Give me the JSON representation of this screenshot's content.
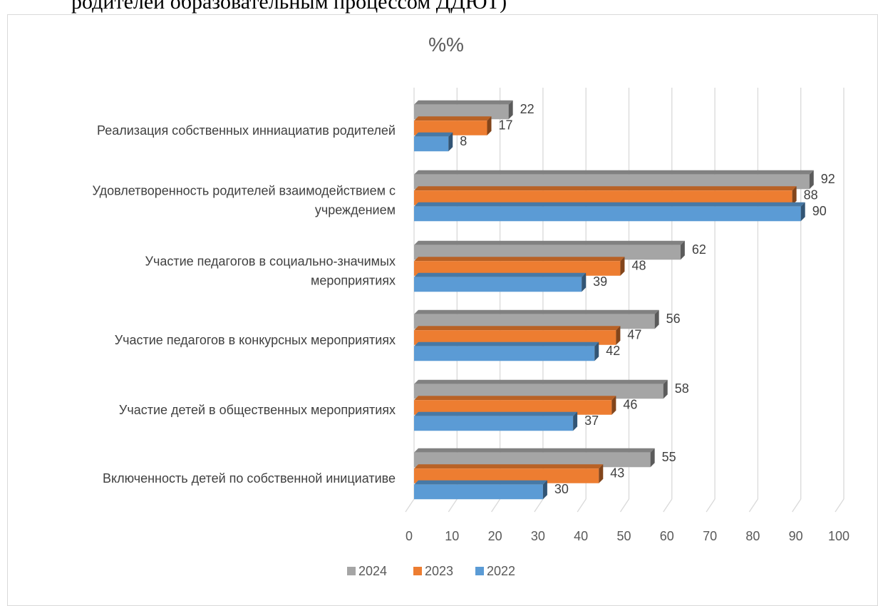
{
  "document": {
    "heading": "родителей образовательным процессом ДДЮТ)"
  },
  "chart_data": {
    "type": "bar",
    "orientation": "horizontal",
    "style": "3d-clustered",
    "title": "%%",
    "categories": [
      "Реализация собственных инициатив родителей",
      "Удовлетворенность родителей взаимодействием с учреждением",
      "Участие педагогов в социально-значимых мероприятиях",
      "Участие педагогов в конкурсных мероприятиях",
      "Участие детей в общественных мероприятиях",
      "Включенность детей по собственной инициативе"
    ],
    "category_label_lines": [
      [
        "Реализация собственных инниациатив родителей"
      ],
      [
        "Удовлетворенность родителей взаимодействием с",
        "учреждением"
      ],
      [
        "Участие педагогов в социально-значимых",
        "мероприятиях"
      ],
      [
        "Участие педагогов в конкурсных мероприятиях"
      ],
      [
        "Участие детей в общественных мероприятиях"
      ],
      [
        "Включенность детей по собственной инициативе"
      ]
    ],
    "series": [
      {
        "name": "2024",
        "color": "#a5a5a5",
        "values": [
          22,
          92,
          62,
          56,
          58,
          55
        ]
      },
      {
        "name": "2023",
        "color": "#ed7d31",
        "values": [
          17,
          88,
          48,
          47,
          46,
          43
        ]
      },
      {
        "name": "2022",
        "color": "#5b9bd5",
        "values": [
          8,
          90,
          39,
          42,
          37,
          30
        ]
      }
    ],
    "xlim": [
      0,
      100
    ],
    "xticks": [
      "0",
      "10",
      "20",
      "30",
      "40",
      "50",
      "60",
      "70",
      "80",
      "90",
      "100"
    ],
    "grid": true,
    "legend_position": "bottom",
    "legend_order": [
      "2024",
      "2023",
      "2022"
    ]
  }
}
